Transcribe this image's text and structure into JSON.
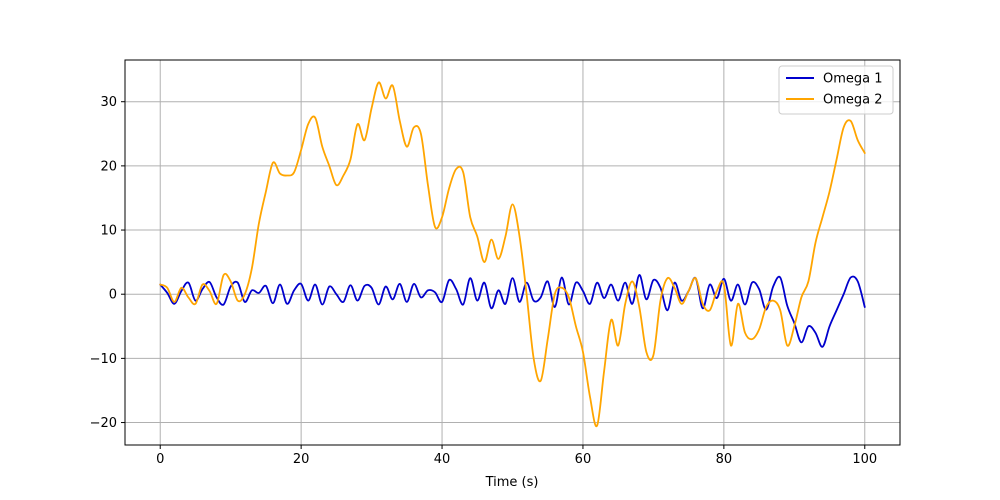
{
  "chart_data": {
    "type": "line",
    "title": "",
    "xlabel": "Time (s)",
    "ylabel": "",
    "xlim": [
      -5,
      105
    ],
    "ylim": [
      -23.5,
      36.5
    ],
    "xticks": [
      0,
      20,
      40,
      60,
      80,
      100
    ],
    "yticks": [
      -20,
      -10,
      0,
      10,
      20,
      30
    ],
    "grid": true,
    "legend_position": "top-right",
    "series": [
      {
        "name": "Omega 1",
        "color": "#0000cd",
        "x": [
          0,
          1,
          2,
          3,
          4,
          5,
          6,
          7,
          8,
          9,
          10,
          11,
          12,
          13,
          14,
          15,
          16,
          17,
          18,
          19,
          20,
          21,
          22,
          23,
          24,
          25,
          26,
          27,
          28,
          29,
          30,
          31,
          32,
          33,
          34,
          35,
          36,
          37,
          38,
          39,
          40,
          41,
          42,
          43,
          44,
          45,
          46,
          47,
          48,
          49,
          50,
          51,
          52,
          53,
          54,
          55,
          56,
          57,
          58,
          59,
          60,
          61,
          62,
          63,
          64,
          65,
          66,
          67,
          68,
          69,
          70,
          71,
          72,
          73,
          74,
          75,
          76,
          77,
          78,
          79,
          80,
          81,
          82,
          83,
          84,
          85,
          86,
          87,
          88,
          89,
          90,
          91,
          92,
          93,
          94,
          95,
          96,
          97,
          98,
          99,
          100
        ],
        "y": [
          1.5,
          0.2,
          -1.5,
          0.5,
          1.8,
          -1.0,
          0.8,
          1.9,
          -0.5,
          -1.6,
          1.2,
          1.8,
          -1.2,
          0.6,
          0.2,
          1.3,
          -1.4,
          1.5,
          -1.5,
          0.6,
          1.6,
          -1.0,
          1.5,
          -1.6,
          1.2,
          0.0,
          -1.2,
          1.4,
          -1.0,
          1.3,
          1.0,
          -1.6,
          1.2,
          -0.8,
          1.6,
          -1.2,
          1.6,
          -0.5,
          0.6,
          0.3,
          -1.2,
          2.2,
          0.8,
          -1.6,
          2.5,
          -1.0,
          1.8,
          -2.2,
          0.6,
          -1.5,
          2.5,
          -1.2,
          1.8,
          -1.0,
          -0.5,
          2.0,
          -2.0,
          2.6,
          -1.6,
          1.8,
          0.5,
          -1.5,
          1.8,
          -0.6,
          1.5,
          -1.0,
          1.8,
          -1.5,
          3.0,
          -0.8,
          2.2,
          1.0,
          -2.5,
          1.8,
          -1.0,
          0.5,
          2.5,
          -2.2,
          1.5,
          -0.6,
          2.4,
          -1.0,
          1.5,
          -1.6,
          1.8,
          0.8,
          -2.4,
          1.2,
          2.6,
          -1.8,
          -4.5,
          -7.5,
          -5.0,
          -6.0,
          -8.2,
          -5.0,
          -2.5,
          0.0,
          2.6,
          2.0,
          -2.0
        ]
      },
      {
        "name": "Omega 2",
        "color": "#ffa500",
        "x": [
          0,
          1,
          2,
          3,
          4,
          5,
          6,
          7,
          8,
          9,
          10,
          11,
          12,
          13,
          14,
          15,
          16,
          17,
          18,
          19,
          20,
          21,
          22,
          23,
          24,
          25,
          26,
          27,
          28,
          29,
          30,
          31,
          32,
          33,
          34,
          35,
          36,
          37,
          38,
          39,
          40,
          41,
          42,
          43,
          44,
          45,
          46,
          47,
          48,
          49,
          50,
          51,
          52,
          53,
          54,
          55,
          56,
          57,
          58,
          59,
          60,
          61,
          62,
          63,
          64,
          65,
          66,
          67,
          68,
          69,
          70,
          71,
          72,
          73,
          74,
          75,
          76,
          77,
          78,
          79,
          80,
          81,
          82,
          83,
          84,
          85,
          86,
          87,
          88,
          89,
          90,
          91,
          92,
          93,
          94,
          95,
          96,
          97,
          98,
          99,
          100
        ],
        "y": [
          1.5,
          1.0,
          -1.2,
          1.0,
          -0.5,
          -1.5,
          1.5,
          0.5,
          -1.5,
          3.0,
          2.0,
          -1.0,
          0.0,
          4.0,
          11.0,
          16.0,
          20.5,
          18.8,
          18.5,
          19.0,
          22.5,
          26.5,
          27.5,
          23.0,
          20.0,
          17.0,
          18.5,
          21.0,
          26.5,
          24.0,
          29.0,
          33.0,
          30.5,
          32.5,
          27.0,
          23.0,
          26.0,
          25.0,
          17.0,
          10.5,
          12.0,
          16.5,
          19.5,
          19.0,
          12.0,
          9.0,
          5.0,
          8.5,
          5.5,
          9.0,
          14.0,
          9.0,
          0.0,
          -10.0,
          -13.5,
          -7.0,
          0.0,
          1.0,
          -0.5,
          -5.0,
          -9.0,
          -16.0,
          -20.5,
          -12.0,
          -4.0,
          -8.0,
          -1.5,
          2.0,
          -2.0,
          -9.0,
          -9.5,
          -1.0,
          2.5,
          1.0,
          -1.5,
          0.5,
          2.5,
          -1.5,
          -2.5,
          0.5,
          1.5,
          -8.0,
          -1.5,
          -6.0,
          -7.0,
          -5.5,
          -2.0,
          -1.0,
          -2.5,
          -8.0,
          -5.0,
          -0.5,
          2.0,
          8.0,
          12.0,
          16.0,
          21.0,
          26.0,
          27.0,
          24.0,
          22.0
        ]
      }
    ]
  }
}
